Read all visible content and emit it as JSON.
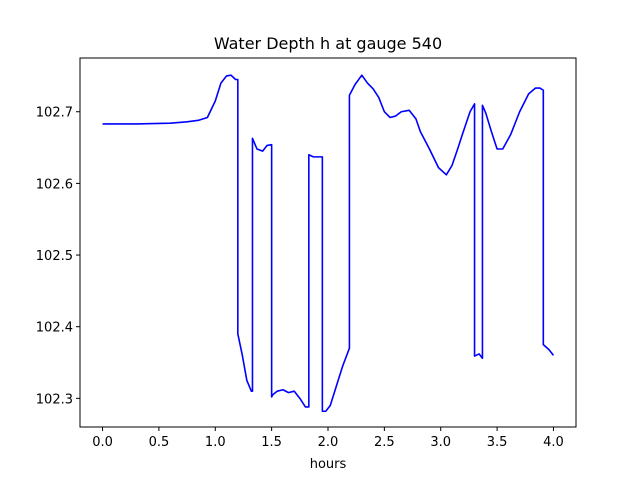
{
  "chart_data": {
    "type": "line",
    "title": "Water Depth h at gauge 540",
    "xlabel": "hours",
    "ylabel": "",
    "xlim": [
      -0.2,
      4.2
    ],
    "ylim": [
      102.26,
      102.775
    ],
    "xticks": [
      0.0,
      0.5,
      1.0,
      1.5,
      2.0,
      2.5,
      3.0,
      3.5,
      4.0
    ],
    "xtick_labels": [
      "0.0",
      "0.5",
      "1.0",
      "1.5",
      "2.0",
      "2.5",
      "3.0",
      "3.5",
      "4.0"
    ],
    "yticks": [
      102.3,
      102.4,
      102.5,
      102.6,
      102.7
    ],
    "ytick_labels": [
      "102.3",
      "102.4",
      "102.5",
      "102.6",
      "102.7"
    ],
    "grid": false,
    "series": [
      {
        "color": "#0000ff",
        "x": [
          0.0,
          0.3,
          0.6,
          0.75,
          0.85,
          0.93,
          1.0,
          1.05,
          1.1,
          1.14,
          1.18,
          1.2,
          1.2,
          1.24,
          1.28,
          1.32,
          1.33,
          1.33,
          1.37,
          1.42,
          1.46,
          1.5,
          1.5,
          1.51,
          1.55,
          1.6,
          1.65,
          1.7,
          1.75,
          1.8,
          1.83,
          1.83,
          1.87,
          1.93,
          1.95,
          1.95,
          1.98,
          2.02,
          2.07,
          2.13,
          2.19,
          2.19,
          2.24,
          2.3,
          2.35,
          2.4,
          2.45,
          2.5,
          2.55,
          2.6,
          2.65,
          2.72,
          2.78,
          2.82,
          2.9,
          2.98,
          3.05,
          3.1,
          3.15,
          3.2,
          3.26,
          3.3,
          3.3,
          3.34,
          3.37,
          3.37,
          3.4,
          3.45,
          3.5,
          3.55,
          3.62,
          3.7,
          3.78,
          3.84,
          3.88,
          3.91,
          3.91,
          3.96,
          4.0
        ],
        "y": [
          102.683,
          102.683,
          102.684,
          102.686,
          102.688,
          102.692,
          102.715,
          102.74,
          102.75,
          102.751,
          102.745,
          102.745,
          102.39,
          102.36,
          102.325,
          102.31,
          102.31,
          102.663,
          102.648,
          102.645,
          102.653,
          102.654,
          102.302,
          102.305,
          102.31,
          102.312,
          102.308,
          102.31,
          102.3,
          102.288,
          102.288,
          102.64,
          102.637,
          102.637,
          102.637,
          102.282,
          102.282,
          102.29,
          102.315,
          102.345,
          102.37,
          102.723,
          102.738,
          102.751,
          102.74,
          102.732,
          102.72,
          102.7,
          102.692,
          102.694,
          102.7,
          102.702,
          102.69,
          102.672,
          102.648,
          102.622,
          102.612,
          102.625,
          102.648,
          102.672,
          102.7,
          102.711,
          102.359,
          102.362,
          102.356,
          102.709,
          102.698,
          102.672,
          102.648,
          102.648,
          102.668,
          102.7,
          102.725,
          102.733,
          102.733,
          102.73,
          102.375,
          102.368,
          102.36
        ]
      }
    ]
  }
}
